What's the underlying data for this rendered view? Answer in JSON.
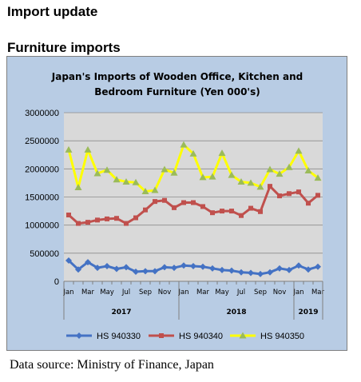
{
  "page": {
    "heading": "Import update",
    "subheading": "Furniture imports",
    "source": "Data source: Ministry of Finance, Japan"
  },
  "chart_data": {
    "type": "line",
    "title_lines": [
      "Japan's Imports of  Wooden  Office, Kitchen and",
      "Bedroom Furniture (Yen 000's)"
    ],
    "xlabel": "",
    "ylabel": "",
    "ylim": [
      0,
      3000000
    ],
    "y_ticks": [
      "0",
      "500000",
      "1000000",
      "1500000",
      "2000000",
      "2500000",
      "3000000"
    ],
    "x_tick_labels": [
      "Jan",
      "Mar",
      "May",
      "Jul",
      "Sep",
      "Nov",
      "Jan",
      "Mar",
      "May",
      "Jul",
      "Sep",
      "Nov",
      "Jan",
      "Mar"
    ],
    "year_labels": [
      {
        "label": "2017",
        "start": 0,
        "end": 12
      },
      {
        "label": "2018",
        "start": 12,
        "end": 24
      },
      {
        "label": "2019",
        "start": 24,
        "end": 27
      }
    ],
    "grid": true,
    "legend_position": "bottom",
    "x": [
      "2017-01",
      "2017-02",
      "2017-03",
      "2017-04",
      "2017-05",
      "2017-06",
      "2017-07",
      "2017-08",
      "2017-09",
      "2017-10",
      "2017-11",
      "2017-12",
      "2018-01",
      "2018-02",
      "2018-03",
      "2018-04",
      "2018-05",
      "2018-06",
      "2018-07",
      "2018-08",
      "2018-09",
      "2018-10",
      "2018-11",
      "2018-12",
      "2019-01",
      "2019-02",
      "2019-03"
    ],
    "series": [
      {
        "name": "HS 940330",
        "color": "#4472c4",
        "marker": "diamond",
        "values": [
          370000,
          210000,
          340000,
          240000,
          270000,
          220000,
          250000,
          170000,
          180000,
          180000,
          250000,
          240000,
          280000,
          270000,
          260000,
          230000,
          200000,
          190000,
          160000,
          150000,
          130000,
          160000,
          230000,
          200000,
          280000,
          210000,
          260000
        ]
      },
      {
        "name": "HS 940340",
        "color": "#c0504d",
        "marker": "square",
        "values": [
          1180000,
          1030000,
          1050000,
          1090000,
          1110000,
          1120000,
          1030000,
          1130000,
          1270000,
          1420000,
          1440000,
          1310000,
          1400000,
          1400000,
          1330000,
          1220000,
          1250000,
          1250000,
          1170000,
          1300000,
          1240000,
          1690000,
          1520000,
          1560000,
          1590000,
          1390000,
          1530000
        ]
      },
      {
        "name": "HS 940350",
        "color": "#ffff00",
        "marker": "triangle",
        "values": [
          2340000,
          1670000,
          2340000,
          1920000,
          1980000,
          1810000,
          1770000,
          1760000,
          1600000,
          1620000,
          1990000,
          1930000,
          2430000,
          2270000,
          1850000,
          1860000,
          2280000,
          1890000,
          1770000,
          1750000,
          1680000,
          1990000,
          1910000,
          2030000,
          2320000,
          1970000,
          1840000
        ]
      }
    ]
  }
}
